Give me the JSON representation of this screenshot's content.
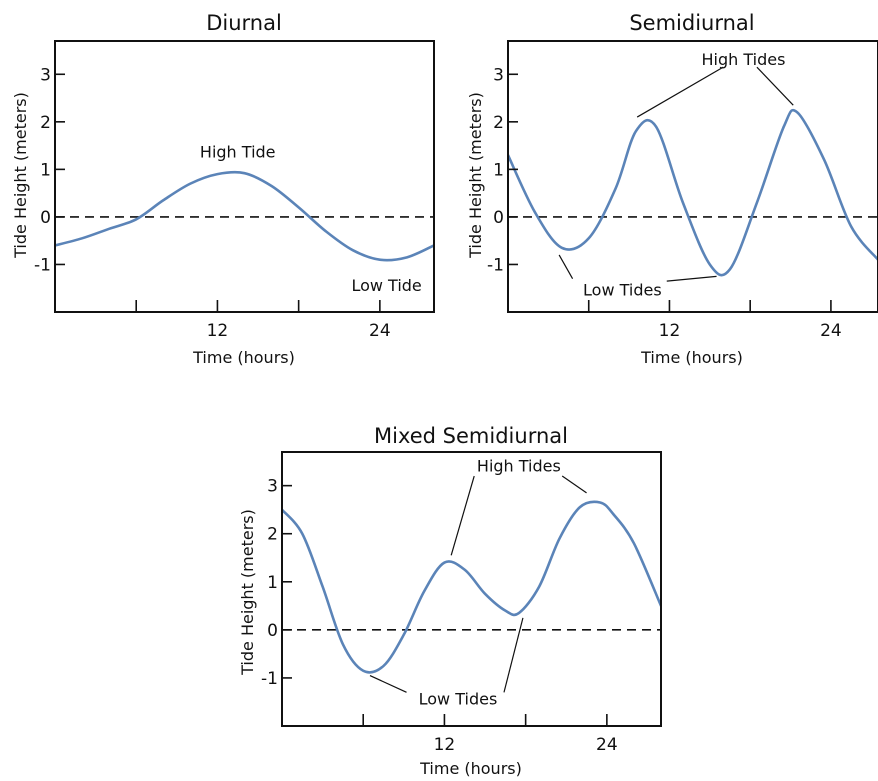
{
  "chart_data": [
    {
      "type": "line",
      "title": "Diurnal",
      "xlabel": "Time (hours)",
      "ylabel": "Tide Height (meters)",
      "xlim": [
        0,
        28
      ],
      "ylim": [
        -2,
        3.7
      ],
      "x_ticks": [
        6,
        12,
        18,
        24
      ],
      "x_tick_labels": [
        "",
        "12",
        "",
        "24"
      ],
      "y_ticks": [
        3,
        2,
        1,
        0,
        -1
      ],
      "y_tick_labels": [
        "3",
        "2",
        "1",
        "0",
        "-1"
      ],
      "zero_line": "dashed",
      "grid": false,
      "series": [
        {
          "color": "#5b84b8",
          "x": [
            0,
            2,
            4,
            6,
            8,
            10,
            12,
            14,
            16,
            18,
            20,
            22,
            24,
            26,
            28
          ],
          "y": [
            -0.6,
            -0.45,
            -0.25,
            -0.05,
            0.35,
            0.7,
            0.9,
            0.92,
            0.65,
            0.2,
            -0.3,
            -0.7,
            -0.9,
            -0.85,
            -0.6
          ]
        }
      ],
      "annotations": [
        {
          "text": "High Tide",
          "x": 13.5,
          "y": 1.35,
          "anchor": "middle"
        },
        {
          "text": "Low Tide",
          "x": 24.5,
          "y": -1.45,
          "anchor": "middle"
        }
      ]
    },
    {
      "type": "line",
      "title": "Semidiurnal",
      "xlabel": "Time (hours)",
      "ylabel": "Tide Height (meters)",
      "xlim": [
        0,
        27.5
      ],
      "ylim": [
        -2,
        3.7
      ],
      "x_ticks": [
        6,
        12,
        18,
        24
      ],
      "x_tick_labels": [
        "",
        "12",
        "",
        "24"
      ],
      "y_ticks": [
        3,
        2,
        1,
        0,
        -1
      ],
      "y_tick_labels": [
        "3",
        "2",
        "1",
        "0",
        "-1"
      ],
      "zero_line": "dashed",
      "grid": false,
      "series": [
        {
          "color": "#5b84b8",
          "x": [
            0,
            2,
            4,
            6,
            8,
            9.5,
            11,
            13,
            15,
            16.5,
            18.5,
            20.5,
            21.5,
            23.5,
            25.5,
            27.5
          ],
          "y": [
            1.3,
            0.1,
            -0.65,
            -0.45,
            0.6,
            1.8,
            1.9,
            0.3,
            -1.0,
            -1.1,
            0.3,
            1.9,
            2.2,
            1.2,
            -0.2,
            -0.9
          ]
        }
      ],
      "annotations": [
        {
          "text": "High Tides",
          "x": 17.5,
          "y": 3.3,
          "anchor": "middle",
          "leaders": [
            {
              "from": [
                16.0,
                3.15
              ],
              "to": [
                9.6,
                2.1
              ]
            },
            {
              "from": [
                18.5,
                3.15
              ],
              "to": [
                21.2,
                2.35
              ]
            }
          ]
        },
        {
          "text": "Low Tides",
          "x": 8.5,
          "y": -1.55,
          "anchor": "middle",
          "leaders": [
            {
              "from": [
                4.8,
                -1.3
              ],
              "to": [
                3.8,
                -0.8
              ]
            },
            {
              "from": [
                11.8,
                -1.35
              ],
              "to": [
                15.5,
                -1.25
              ]
            }
          ]
        }
      ]
    },
    {
      "type": "line",
      "title": "Mixed Semidiurnal",
      "xlabel": "Time (hours)",
      "ylabel": "Tide Height (meters)",
      "xlim": [
        0,
        28
      ],
      "ylim": [
        -2,
        3.7
      ],
      "x_ticks": [
        6,
        12,
        18,
        24
      ],
      "x_tick_labels": [
        "",
        "12",
        "",
        "24"
      ],
      "y_ticks": [
        3,
        2,
        1,
        0,
        -1
      ],
      "y_tick_labels": [
        "3",
        "2",
        "1",
        "0",
        "-1"
      ],
      "zero_line": "dashed",
      "grid": false,
      "series": [
        {
          "color": "#5b84b8",
          "x": [
            0,
            1.5,
            3,
            4.5,
            6,
            7.5,
            9,
            10.5,
            12,
            13.5,
            15,
            16.5,
            17.5,
            19,
            20.5,
            22,
            23.5,
            24.5,
            26,
            28
          ],
          "y": [
            2.5,
            2.0,
            0.9,
            -0.3,
            -0.85,
            -0.75,
            -0.1,
            0.8,
            1.4,
            1.25,
            0.75,
            0.4,
            0.35,
            0.9,
            1.9,
            2.55,
            2.65,
            2.4,
            1.8,
            0.5
          ]
        }
      ],
      "annotations": [
        {
          "text": "High Tides",
          "x": 17.5,
          "y": 3.4,
          "anchor": "middle",
          "leaders": [
            {
              "from": [
                14.2,
                3.2
              ],
              "to": [
                12.5,
                1.55
              ]
            },
            {
              "from": [
                20.7,
                3.2
              ],
              "to": [
                22.5,
                2.85
              ]
            }
          ]
        },
        {
          "text": "Low Tides",
          "x": 13.0,
          "y": -1.45,
          "anchor": "middle",
          "leaders": [
            {
              "from": [
                9.2,
                -1.3
              ],
              "to": [
                6.5,
                -0.95
              ]
            },
            {
              "from": [
                16.4,
                -1.3
              ],
              "to": [
                17.8,
                0.25
              ]
            }
          ]
        }
      ]
    }
  ]
}
